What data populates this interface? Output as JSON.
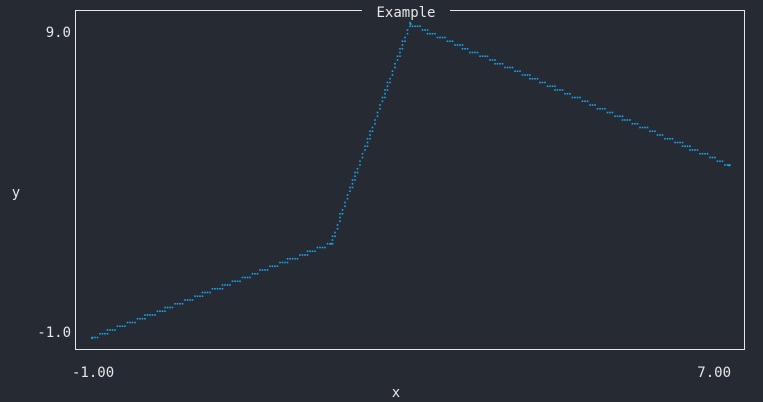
{
  "chart_data": {
    "type": "scatter",
    "title": "Example",
    "xlabel": "x",
    "ylabel": "y",
    "xlim": [
      -1.0,
      7.0
    ],
    "ylim": [
      -1.0,
      9.0
    ],
    "x_tick_labels": [
      "-1.00",
      "7.00"
    ],
    "y_tick_labels": [
      "9.0",
      "-1.0"
    ],
    "grid": false,
    "series": [
      {
        "color": "#1aa3e8",
        "x": [
          -1.0,
          2.0,
          3.0,
          7.0
        ],
        "y": [
          -1.0,
          2.0,
          9.0,
          4.5
        ]
      }
    ]
  }
}
